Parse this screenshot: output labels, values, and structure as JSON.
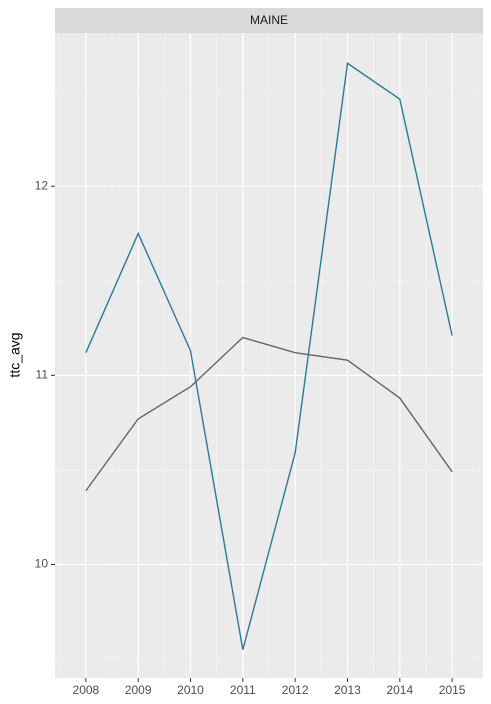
{
  "chart_data": {
    "type": "line",
    "facet": "MAINE",
    "ylabel": "ttc_avg",
    "x": [
      2008,
      2009,
      2010,
      2011,
      2012,
      2013,
      2014,
      2015
    ],
    "series": [
      {
        "color": "#2b7a98",
        "values": [
          11.12,
          11.75,
          11.13,
          9.55,
          10.59,
          12.65,
          12.46,
          11.21
        ]
      },
      {
        "color": "#666666",
        "values": [
          10.39,
          10.77,
          10.94,
          11.2,
          11.12,
          11.08,
          10.88,
          10.49
        ]
      }
    ],
    "xlim": [
      2007.41,
      2015.59
    ],
    "xticks": [
      2008,
      2009,
      2010,
      2011,
      2012,
      2013,
      2014,
      2015
    ],
    "ylim": [
      9.4,
      12.81
    ],
    "yticks": [
      10,
      11,
      12
    ],
    "grid": true
  }
}
